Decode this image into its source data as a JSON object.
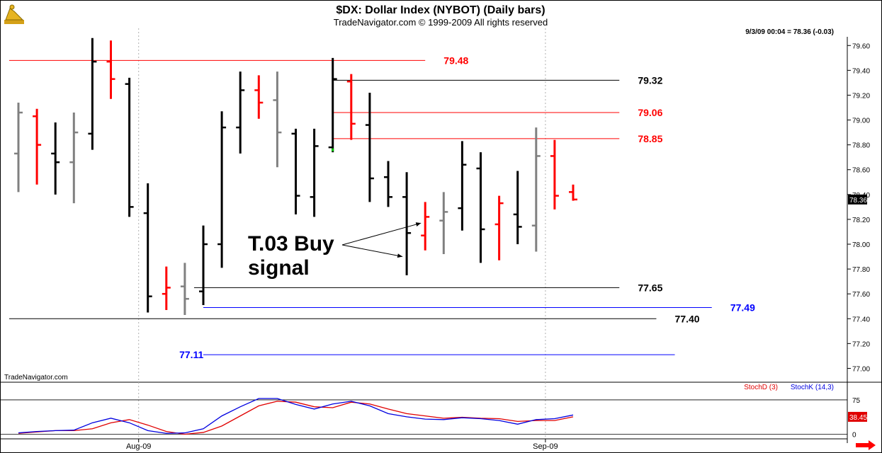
{
  "header": {
    "title": "$DX:  Dollar Index (NYBOT)  (Daily bars)",
    "subtitle": "TradeNavigator.com © 1999-2009 All rights reserved",
    "quote": "9/3/09 00:04 = 78.36 (-0.03)",
    "watermark": "TradeNavigator.com",
    "logo_icon": "telescope-icon",
    "scroll_icon": "right-arrow-icon"
  },
  "chart_data": [
    {
      "type": "ohlc",
      "title": "$DX:  Dollar Index (NYBOT)  (Daily bars)",
      "ylim": [
        76.9,
        79.67
      ],
      "yticks": [
        "79.60",
        "79.40",
        "79.20",
        "79.00",
        "78.80",
        "78.60",
        "78.40",
        "78.20",
        "78.00",
        "77.80",
        "77.60",
        "77.40",
        "77.20",
        "77.00"
      ],
      "ytick_values": [
        79.6,
        79.4,
        79.2,
        79.0,
        78.8,
        78.6,
        78.4,
        78.2,
        78.0,
        77.8,
        77.6,
        77.4,
        77.2,
        77.0
      ],
      "last_price_label": "78.36",
      "last_price": 78.36,
      "x_labels": [
        {
          "label": "Aug-09",
          "index": 7
        },
        {
          "label": "Sep-09",
          "index": 29
        }
      ],
      "bars": [
        {
          "o": 78.73,
          "h": 79.14,
          "l": 78.42,
          "c": 79.06,
          "color": "gray"
        },
        {
          "o": 79.03,
          "h": 79.09,
          "l": 78.48,
          "c": 78.8,
          "color": "red"
        },
        {
          "o": 78.73,
          "h": 78.98,
          "l": 78.4,
          "c": 78.66,
          "color": "black"
        },
        {
          "o": 78.66,
          "h": 79.06,
          "l": 78.33,
          "c": 78.9,
          "color": "gray"
        },
        {
          "o": 78.89,
          "h": 79.66,
          "l": 78.76,
          "c": 79.47,
          "color": "black"
        },
        {
          "o": 79.47,
          "h": 79.64,
          "l": 79.17,
          "c": 79.33,
          "color": "red"
        },
        {
          "o": 79.29,
          "h": 79.34,
          "l": 78.22,
          "c": 78.3,
          "color": "black"
        },
        {
          "o": 78.25,
          "h": 78.49,
          "l": 77.45,
          "c": 77.58,
          "color": "black"
        },
        {
          "o": 77.6,
          "h": 77.82,
          "l": 77.47,
          "c": 77.65,
          "color": "red"
        },
        {
          "o": 77.66,
          "h": 77.85,
          "l": 77.43,
          "c": 77.56,
          "color": "gray"
        },
        {
          "o": 77.62,
          "h": 78.15,
          "l": 77.51,
          "c": 78.0,
          "color": "black"
        },
        {
          "o": 78.0,
          "h": 79.07,
          "l": 77.81,
          "c": 78.94,
          "color": "black"
        },
        {
          "o": 78.94,
          "h": 79.39,
          "l": 78.73,
          "c": 79.24,
          "color": "black"
        },
        {
          "o": 79.24,
          "h": 79.36,
          "l": 79.01,
          "c": 79.14,
          "color": "red"
        },
        {
          "o": 79.16,
          "h": 79.39,
          "l": 78.62,
          "c": 78.9,
          "color": "gray"
        },
        {
          "o": 78.89,
          "h": 78.93,
          "l": 78.24,
          "c": 78.39,
          "color": "black"
        },
        {
          "o": 78.38,
          "h": 78.93,
          "l": 78.22,
          "c": 78.79,
          "color": "black"
        },
        {
          "o": 78.78,
          "h": 79.5,
          "l": 78.74,
          "c": 79.33,
          "color": "black"
        },
        {
          "o": 79.31,
          "h": 79.37,
          "l": 78.84,
          "c": 78.97,
          "color": "red"
        },
        {
          "o": 78.96,
          "h": 79.22,
          "l": 78.34,
          "c": 78.53,
          "color": "black"
        },
        {
          "o": 78.54,
          "h": 78.67,
          "l": 78.3,
          "c": 78.38,
          "color": "black"
        },
        {
          "o": 78.38,
          "h": 78.58,
          "l": 77.75,
          "c": 78.09,
          "color": "black"
        },
        {
          "o": 78.07,
          "h": 78.34,
          "l": 77.95,
          "c": 78.22,
          "color": "red"
        },
        {
          "o": 78.19,
          "h": 78.42,
          "l": 77.92,
          "c": 78.26,
          "color": "gray"
        },
        {
          "o": 78.29,
          "h": 78.83,
          "l": 78.11,
          "c": 78.64,
          "color": "black"
        },
        {
          "o": 78.61,
          "h": 78.74,
          "l": 77.85,
          "c": 78.12,
          "color": "black"
        },
        {
          "o": 78.16,
          "h": 78.39,
          "l": 77.87,
          "c": 78.33,
          "color": "red"
        },
        {
          "o": 78.24,
          "h": 78.59,
          "l": 78.0,
          "c": 78.14,
          "color": "black"
        },
        {
          "o": 78.15,
          "h": 78.94,
          "l": 77.94,
          "c": 78.71,
          "color": "gray"
        },
        {
          "o": 78.71,
          "h": 78.84,
          "l": 78.28,
          "c": 78.39,
          "color": "red"
        },
        {
          "o": 78.42,
          "h": 78.48,
          "l": 78.35,
          "c": 78.36,
          "color": "red"
        }
      ],
      "levels": [
        {
          "label": "79.48",
          "value": 79.48,
          "color": "#ff0000",
          "x_from": -0.5,
          "x_to": 22.0,
          "label_at": 23.0
        },
        {
          "label": "79.32",
          "value": 79.32,
          "color": "#000000",
          "x_from": 17.0,
          "x_to": 32.5,
          "label_at": 33.5
        },
        {
          "label": "79.06",
          "value": 79.06,
          "color": "#ff0000",
          "x_from": 17.0,
          "x_to": 32.5,
          "label_at": 33.5
        },
        {
          "label": "78.85",
          "value": 78.85,
          "color": "#ff0000",
          "x_from": 17.0,
          "x_to": 32.5,
          "label_at": 33.5
        },
        {
          "label": "77.65",
          "value": 77.65,
          "color": "#000000",
          "x_from": 9.5,
          "x_to": 32.5,
          "label_at": 33.5
        },
        {
          "label": "77.49",
          "value": 77.49,
          "color": "#0000ff",
          "x_from": 10.0,
          "x_to": 37.5,
          "label_at": 38.5
        },
        {
          "label": "77.40",
          "value": 77.4,
          "color": "#000000",
          "x_from": -0.5,
          "x_to": 34.5,
          "label_at": 35.5
        },
        {
          "label": "77.11",
          "value": 77.11,
          "color": "#0000ff",
          "x_from": 10.0,
          "x_to": 35.5,
          "label_at": 8.7
        }
      ],
      "signal_marker": {
        "index": 17,
        "value": 78.76,
        "color": "#00cc00"
      },
      "annotation": {
        "line1": "T.03 Buy",
        "line2": "signal",
        "arrow_targets": [
          {
            "index": 22,
            "value": 78.17
          },
          {
            "index": 21,
            "value": 77.9
          }
        ]
      }
    },
    {
      "type": "line",
      "title": "StochD (3)  StochK (14,3)",
      "ylim": [
        -10,
        95
      ],
      "yticks": [
        "75",
        "0"
      ],
      "ytick_values": [
        75,
        0
      ],
      "reference_lines": [
        75,
        0
      ],
      "last_value_label": "38.45",
      "series": [
        {
          "name": "StochD (3)",
          "color": "#e00000",
          "values": [
            2,
            5,
            8,
            8,
            12,
            25,
            32,
            20,
            6,
            0,
            4,
            18,
            40,
            62,
            72,
            70,
            60,
            58,
            70,
            66,
            55,
            45,
            40,
            35,
            37,
            35,
            34,
            28,
            30,
            30,
            38
          ]
        },
        {
          "name": "StochK (14,3)",
          "color": "#0000e0",
          "values": [
            3,
            6,
            8,
            9,
            25,
            35,
            25,
            8,
            2,
            3,
            12,
            40,
            60,
            78,
            78,
            65,
            55,
            66,
            72,
            62,
            45,
            38,
            33,
            32,
            36,
            34,
            30,
            22,
            32,
            34,
            42
          ]
        }
      ]
    }
  ]
}
